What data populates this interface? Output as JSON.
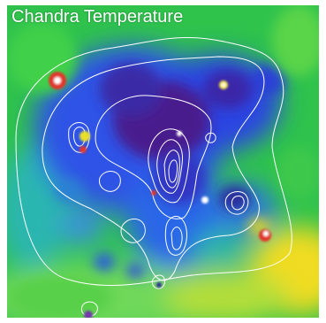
{
  "title": "Chandra Temperature",
  "colors": {
    "background_green": "#2cc24a",
    "cool_blue": "#2a3fe0",
    "coolest_purple": "#4b1f8f",
    "warm_yellow": "#e7e21b",
    "hot_red": "#e33020",
    "contour": "#ffffff"
  },
  "legend": "none",
  "grid": false
}
